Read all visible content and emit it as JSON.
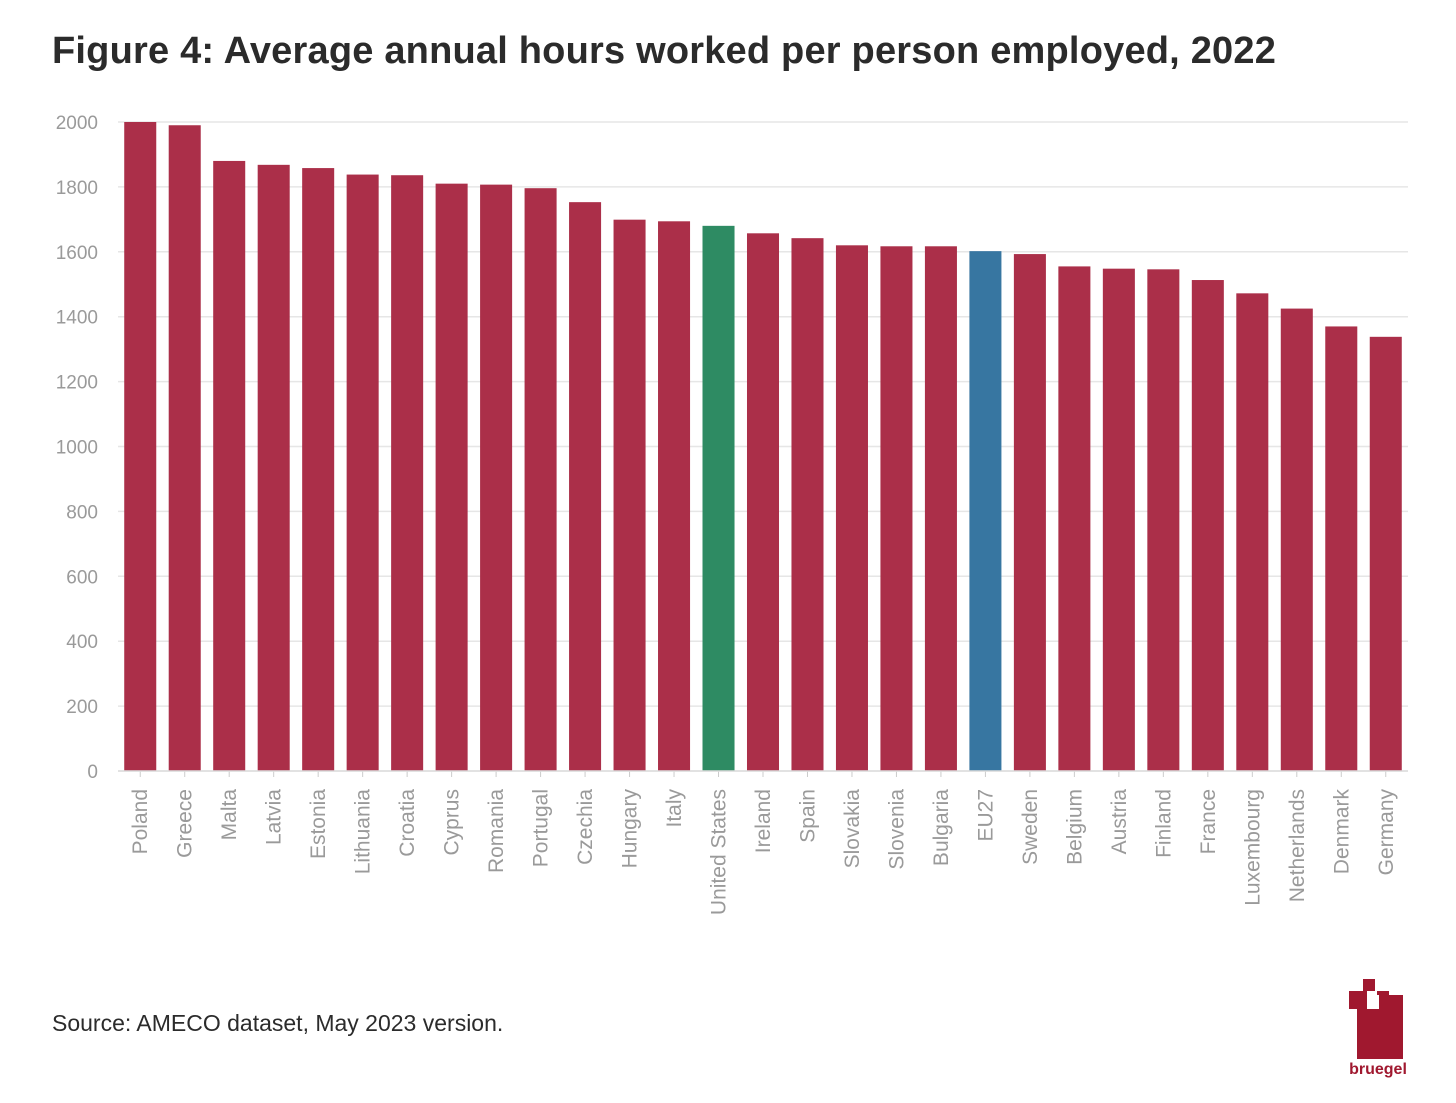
{
  "title": "Figure 4: Average annual hours worked per person employed, 2022",
  "source": "Source: AMECO dataset, May 2023 version.",
  "logo": {
    "text": "bruegel",
    "icon": "bruegel-logo-icon"
  },
  "colors": {
    "default": "#ab2f49",
    "united_states": "#2e8b63",
    "eu27": "#3776a1",
    "grid": "#e6e6e6",
    "tick_text": "#9a9a9a"
  },
  "chart_data": {
    "type": "bar",
    "title": "Figure 4: Average annual hours worked per person employed, 2022",
    "xlabel": "",
    "ylabel": "",
    "ylim": [
      0,
      2000
    ],
    "yticks": [
      0,
      200,
      400,
      600,
      800,
      1000,
      1200,
      1400,
      1600,
      1800,
      2000
    ],
    "grid": true,
    "categories": [
      "Poland",
      "Greece",
      "Malta",
      "Latvia",
      "Estonia",
      "Lithuania",
      "Croatia",
      "Cyprus",
      "Romania",
      "Portugal",
      "Czechia",
      "Hungary",
      "Italy",
      "United States",
      "Ireland",
      "Spain",
      "Slovakia",
      "Slovenia",
      "Bulgaria",
      "EU27",
      "Sweden",
      "Belgium",
      "Austria",
      "Finland",
      "France",
      "Luxembourg",
      "Netherlands",
      "Denmark",
      "Germany"
    ],
    "values": [
      2000,
      1990,
      1880,
      1868,
      1858,
      1838,
      1836,
      1810,
      1807,
      1796,
      1753,
      1699,
      1694,
      1680,
      1657,
      1642,
      1620,
      1617,
      1617,
      1602,
      1593,
      1555,
      1548,
      1546,
      1513,
      1472,
      1425,
      1370,
      1338
    ],
    "highlight": {
      "United States": "united_states",
      "EU27": "eu27"
    }
  }
}
